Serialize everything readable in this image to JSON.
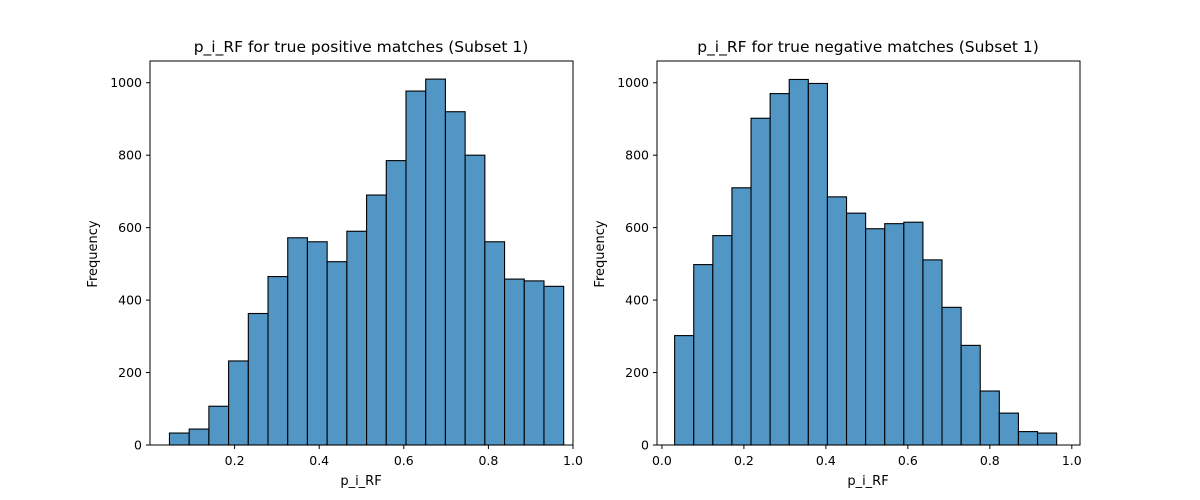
{
  "chart_data": [
    {
      "type": "bar",
      "title": "p_i_RF for true positive matches (Subset 1)",
      "xlabel": "p_i_RF",
      "ylabel": "Frequency",
      "xlim": [
        0.0,
        1.0
      ],
      "ylim": [
        0,
        1060
      ],
      "xticks": [
        0.2,
        0.4,
        0.6,
        0.8,
        1.0
      ],
      "yticks": [
        0,
        200,
        400,
        600,
        800,
        1000
      ],
      "bin_start": 0.046,
      "bin_width": 0.0466,
      "values": [
        33,
        44,
        107,
        232,
        363,
        465,
        572,
        561,
        506,
        590,
        690,
        785,
        977,
        1010,
        920,
        800,
        561,
        458,
        453,
        438
      ],
      "bar_color": "#5296c6",
      "edge_color": "#000000",
      "grid": false
    },
    {
      "type": "bar",
      "title": "p_i_RF for true negative matches (Subset 1)",
      "xlabel": "p_i_RF",
      "ylabel": "Frequency",
      "xlim": [
        -0.012,
        1.02
      ],
      "ylim": [
        0,
        1060
      ],
      "xticks": [
        0.0,
        0.2,
        0.4,
        0.6,
        0.8,
        1.0
      ],
      "yticks": [
        0,
        200,
        400,
        600,
        800,
        1000
      ],
      "bin_start": 0.031,
      "bin_width": 0.0466,
      "values": [
        302,
        498,
        578,
        710,
        902,
        970,
        1009,
        998,
        685,
        640,
        597,
        611,
        615,
        511,
        380,
        275,
        149,
        88,
        37,
        33
      ],
      "bar_color": "#5296c6",
      "edge_color": "#000000",
      "grid": false
    }
  ]
}
